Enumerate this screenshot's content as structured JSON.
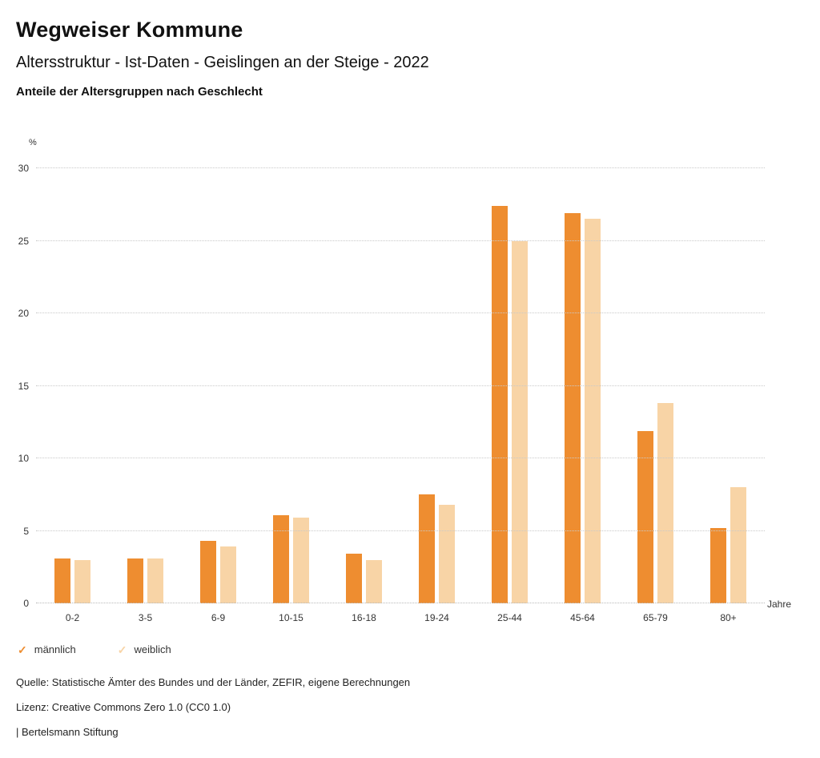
{
  "header": {
    "brand": "Wegweiser Kommune",
    "title": "Altersstruktur - Ist-Daten - Geislingen an der Steige - 2022",
    "subtitle": "Anteile der Altersgruppen nach Geschlecht"
  },
  "chart_data": {
    "type": "bar",
    "categories": [
      "0-2",
      "3-5",
      "6-9",
      "10-15",
      "16-18",
      "19-24",
      "25-44",
      "45-64",
      "65-79",
      "80+"
    ],
    "series": [
      {
        "name": "männlich",
        "color": "#ee8d30",
        "values": [
          3.1,
          3.1,
          4.3,
          6.1,
          3.4,
          7.5,
          27.4,
          26.9,
          11.9,
          5.2
        ]
      },
      {
        "name": "weiblich",
        "color": "#f8d4a6",
        "values": [
          3.0,
          3.1,
          3.9,
          5.9,
          3.0,
          6.8,
          25.0,
          26.5,
          13.8,
          8.0
        ]
      }
    ],
    "ylabel": "%",
    "xlabel": "Jahre",
    "ylim": [
      0,
      30
    ],
    "yticks": [
      0,
      5,
      10,
      15,
      20,
      25,
      30
    ],
    "grid": true,
    "legend_position": "bottom"
  },
  "footer": {
    "source": "Quelle: Statistische Ämter des Bundes und der Länder, ZEFIR, eigene Berechnungen",
    "license": "Lizenz: Creative Commons Zero 1.0 (CC0 1.0)",
    "attribution": "| Bertelsmann Stiftung"
  }
}
